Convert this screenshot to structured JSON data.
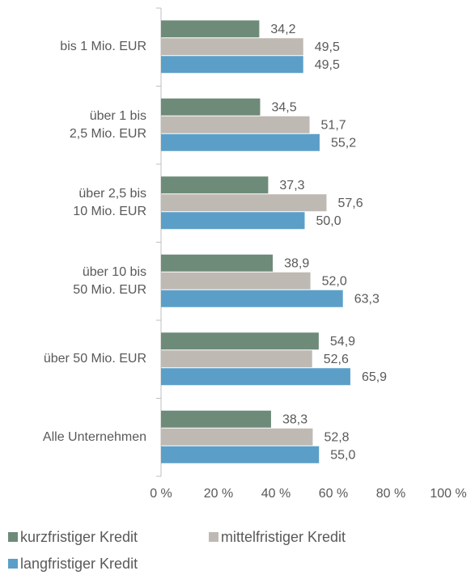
{
  "chart_data": {
    "type": "bar",
    "orientation": "horizontal",
    "categories": [
      "bis 1 Mio. EUR",
      "über 1 bis\n2,5 Mio. EUR",
      "über 2,5 bis\n10 Mio. EUR",
      "über 10 bis\n50 Mio. EUR",
      "über 50 Mio. EUR",
      "Alle Unternehmen"
    ],
    "series": [
      {
        "name": "kurzfristiger Kredit",
        "color": "#6e8b7a",
        "values": [
          34.2,
          34.5,
          37.3,
          38.9,
          54.9,
          38.3
        ],
        "value_labels": [
          "34,2",
          "34,5",
          "37,3",
          "38,9",
          "54,9",
          "38,3"
        ]
      },
      {
        "name": "mittelfristiger Kredit",
        "color": "#bfb9b3",
        "values": [
          49.5,
          51.7,
          57.6,
          52.0,
          52.6,
          52.8
        ],
        "value_labels": [
          "49,5",
          "51,7",
          "57,6",
          "52,0",
          "52,6",
          "52,8"
        ]
      },
      {
        "name": "langfristiger Kredit",
        "color": "#5b9fc8",
        "values": [
          49.5,
          55.2,
          50.0,
          63.3,
          65.9,
          55.0
        ],
        "value_labels": [
          "49,5",
          "55,2",
          "50,0",
          "63,3",
          "65,9",
          "55,0"
        ]
      }
    ],
    "xlim": [
      0,
      100
    ],
    "xticks": [
      {
        "value": 0,
        "label": "0 %"
      },
      {
        "value": 20,
        "label": "20 %"
      },
      {
        "value": 40,
        "label": "40 %"
      },
      {
        "value": 60,
        "label": "60 %"
      },
      {
        "value": 80,
        "label": "80 %"
      },
      {
        "value": 100,
        "label": "100 %"
      }
    ],
    "legend": "bottom"
  }
}
